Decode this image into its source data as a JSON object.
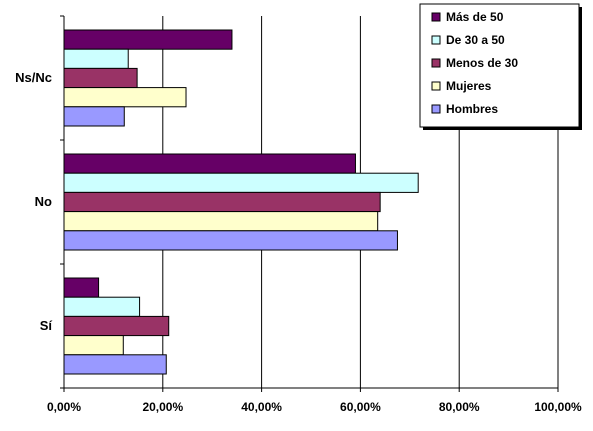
{
  "chart_data": {
    "type": "bar",
    "orientation": "horizontal",
    "categories": [
      "Ns/Nc",
      "No",
      "Sí"
    ],
    "series": [
      {
        "name": "Más de 50",
        "color": "#660066",
        "values": [
          34.0,
          59.0,
          7.0
        ]
      },
      {
        "name": "De 30 a 50",
        "color": "#ccffff",
        "values": [
          13.0,
          71.7,
          15.3
        ]
      },
      {
        "name": "Menos de 30",
        "color": "#993366",
        "values": [
          14.8,
          64.0,
          21.2
        ]
      },
      {
        "name": "Mujeres",
        "color": "#ffffcc",
        "values": [
          24.7,
          63.5,
          12.0
        ]
      },
      {
        "name": "Hombres",
        "color": "#9999ff",
        "values": [
          12.2,
          67.5,
          20.7
        ]
      }
    ],
    "xlim": [
      0,
      100
    ],
    "xticks": [
      0,
      20,
      40,
      60,
      80,
      100
    ],
    "xtick_labels": [
      "0,00%",
      "20,00%",
      "40,00%",
      "60,00%",
      "80,00%",
      "100,00%"
    ],
    "grid": true,
    "legend_position": "top-right",
    "title": "",
    "xlabel": "",
    "ylabel": ""
  }
}
